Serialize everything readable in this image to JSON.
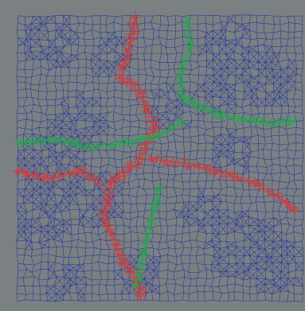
{
  "colors": {
    "background": "#7b8082",
    "mesh": "#2a3a9c",
    "red_path": "#d23a3a",
    "green_path": "#21a84c"
  },
  "scene": {
    "kind": "distorted-grid-mesh",
    "grid_rows": 38,
    "grid_cols": 38,
    "overlays": [
      "red-path",
      "green-path"
    ]
  }
}
